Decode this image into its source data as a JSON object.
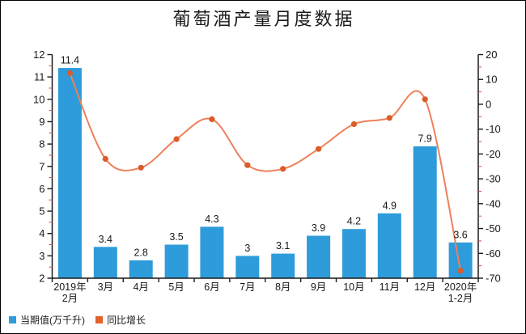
{
  "title": "葡萄酒产量月度数据",
  "frame": {
    "background": "#ffffff",
    "border_color": "#000000"
  },
  "legend": {
    "position": "bottom-left",
    "items": [
      {
        "label": "当期值(万千升)",
        "color": "#2E9BDA",
        "shape": "square"
      },
      {
        "label": "同比增长",
        "color": "#E2622C",
        "shape": "square"
      }
    ]
  },
  "chart_data": {
    "type": "bar+line",
    "title": "葡萄酒产量月度数据",
    "categories": [
      "2019年\n2月",
      "3月",
      "4月",
      "5月",
      "6月",
      "7月",
      "8月",
      "9月",
      "10月",
      "11月",
      "12月",
      "2020年\n1-2月"
    ],
    "series": [
      {
        "name": "当期值(万千升)",
        "type": "bar",
        "y_axis": "left",
        "color": "#2E9BDA",
        "values": [
          11.4,
          3.4,
          2.8,
          3.5,
          4.3,
          3,
          3.1,
          3.9,
          4.2,
          4.9,
          7.9,
          3.6
        ],
        "data_labels_shown": true
      },
      {
        "name": "同比增长",
        "type": "line",
        "y_axis": "right",
        "color": "#ED805A",
        "marker_color": "#DC5B28",
        "values": [
          12.5,
          -22,
          -25.5,
          -14,
          -6,
          -24.5,
          -26,
          -18,
          -8,
          -5.5,
          2,
          -67
        ]
      }
    ],
    "left_axis": {
      "min": 2,
      "max": 12,
      "major_step": 1,
      "minor_step": 0.5,
      "axis_color": "#1a1a1a",
      "minor_tick_color": "#C0504D"
    },
    "right_axis": {
      "min": -70,
      "max": 20,
      "major_step": 10,
      "minor_step": 5,
      "axis_color": "#1a1a1a",
      "minor_tick_color": "#C0504D"
    },
    "grid": false,
    "legend_position": "bottom-left"
  }
}
